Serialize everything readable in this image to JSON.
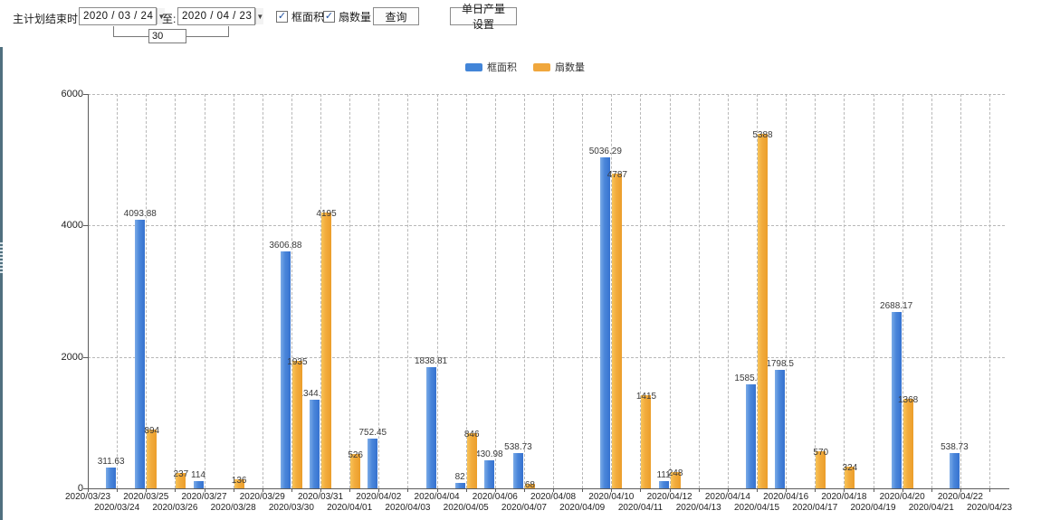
{
  "toolbar": {
    "plan_end_label": "主计划结束时间:",
    "date_from": "2020 / 03 / 24",
    "to_label": "至:",
    "date_to": "2020 / 04 / 23",
    "days_value": "30",
    "frame_area_checkbox_label": "框面积",
    "fan_qty_checkbox_label": "扇数量",
    "checkbox_checked_glyph": "✓",
    "combo_arrow_glyph": "▼",
    "query_button": "查询",
    "daily_output_button": "单日产量设置"
  },
  "legend": {
    "frame_area": "框面积",
    "fan_qty": "扇数量"
  },
  "colors": {
    "frame_area_blue": "#4285d8",
    "fan_qty_orange": "#f0a73d",
    "edge_strip": "#50707f"
  },
  "chart_data": {
    "type": "bar",
    "title": "",
    "xlabel": "",
    "ylabel": "",
    "ylim": [
      0,
      6000
    ],
    "yticks": [
      0,
      2000,
      4000,
      6000
    ],
    "grid": true,
    "legend_position": "top",
    "categories": [
      "2020/03/23",
      "2020/03/24",
      "2020/03/25",
      "2020/03/26",
      "2020/03/27",
      "2020/03/28",
      "2020/03/29",
      "2020/03/30",
      "2020/03/31",
      "2020/04/01",
      "2020/04/02",
      "2020/04/03",
      "2020/04/04",
      "2020/04/05",
      "2020/04/06",
      "2020/04/07",
      "2020/04/08",
      "2020/04/09",
      "2020/04/10",
      "2020/04/11",
      "2020/04/12",
      "2020/04/13",
      "2020/04/14",
      "2020/04/15",
      "2020/04/16",
      "2020/04/17",
      "2020/04/18",
      "2020/04/19",
      "2020/04/20",
      "2020/04/21",
      "2020/04/22",
      "2020/04/23"
    ],
    "series": [
      {
        "name": "框面积",
        "color": "#4285d8",
        "values": [
          null,
          311.63,
          4093.88,
          null,
          114,
          null,
          null,
          3606.88,
          1344.95,
          null,
          752.45,
          null,
          1838.81,
          82,
          430.98,
          538.73,
          null,
          null,
          5036.29,
          null,
          111,
          null,
          null,
          1585.96,
          1798.5,
          null,
          null,
          null,
          2688.17,
          null,
          538.73,
          null
        ]
      },
      {
        "name": "扇数量",
        "color": "#f0a73d",
        "values": [
          null,
          null,
          894,
          237,
          null,
          136,
          null,
          1935,
          4195,
          526,
          null,
          null,
          null,
          846,
          null,
          68,
          null,
          null,
          4787,
          1415,
          248,
          null,
          null,
          5388,
          null,
          570,
          324,
          null,
          1368,
          null,
          null,
          null
        ]
      }
    ]
  }
}
